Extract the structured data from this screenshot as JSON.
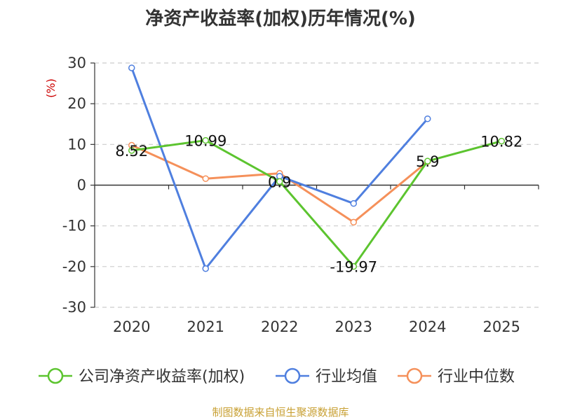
{
  "chart_data": {
    "type": "line",
    "title": "净资产收益率(加权)历年情况(%)",
    "ylabel": "(%)",
    "categories": [
      "2020",
      "2021",
      "2022",
      "2023",
      "2024",
      "2025"
    ],
    "ylim": [
      -30,
      30
    ],
    "yticks": [
      "30",
      "20",
      "10",
      "0",
      "-10",
      "-20",
      "-30"
    ],
    "grid": true,
    "legend_position": "bottom",
    "series": [
      {
        "name": "公司净资产收益率(加权)",
        "color": "#5cc42f",
        "values": [
          8.52,
          10.99,
          0.9,
          -19.97,
          5.9,
          10.82
        ],
        "labels": [
          "8.52",
          "10.99",
          "0.9",
          "-19.97",
          "5.9",
          "10.82"
        ]
      },
      {
        "name": "行业均值",
        "color": "#4f7fdf",
        "values": [
          28.8,
          -20.5,
          2.2,
          -4.5,
          16.3,
          null
        ]
      },
      {
        "name": "行业中位数",
        "color": "#f5905a",
        "values": [
          9.8,
          1.6,
          2.9,
          -9.1,
          5.8,
          null
        ]
      }
    ]
  },
  "source": "制图数据来自恒生聚源数据库"
}
